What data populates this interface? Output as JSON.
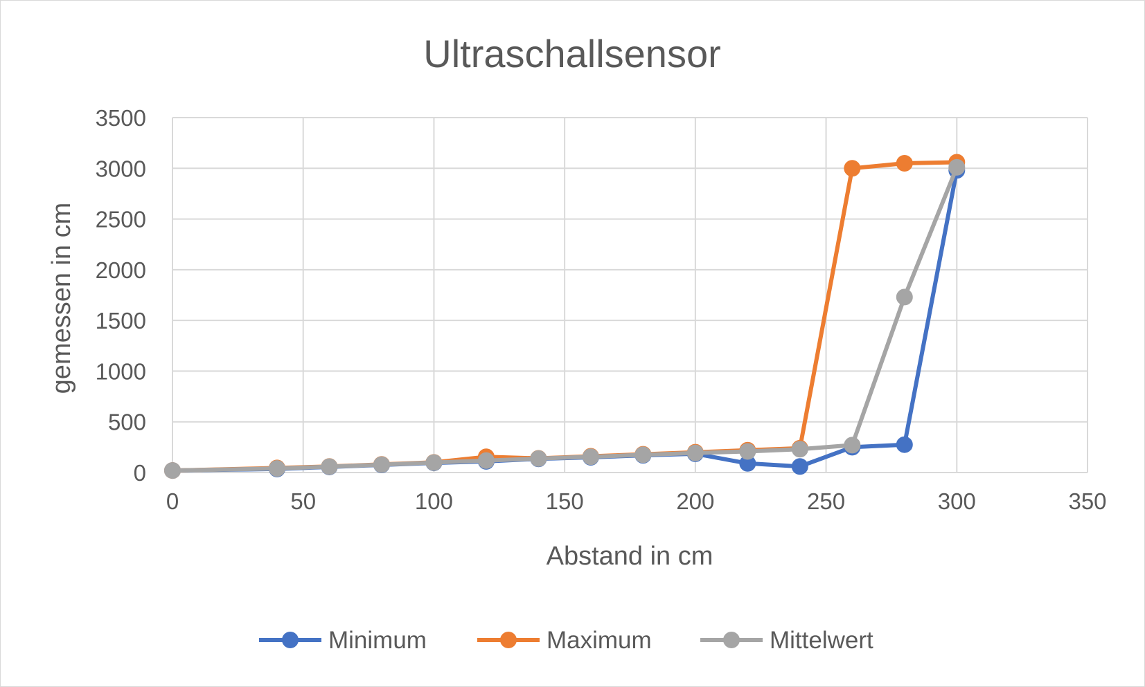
{
  "chart_data": {
    "type": "scatter",
    "title": "Ultraschallsensor",
    "xlabel": "Abstand in cm",
    "ylabel": "gemessen in cm",
    "xlim": [
      0,
      350
    ],
    "ylim": [
      0,
      3500
    ],
    "x_ticks": [
      "0",
      "50",
      "100",
      "150",
      "200",
      "250",
      "300",
      "350"
    ],
    "y_ticks": [
      "0",
      "500",
      "1000",
      "1500",
      "2000",
      "2500",
      "3000",
      "3500"
    ],
    "x_tick_values": [
      0,
      50,
      100,
      150,
      200,
      250,
      300,
      350
    ],
    "y_tick_values": [
      0,
      500,
      1000,
      1500,
      2000,
      2500,
      3000,
      3500
    ],
    "grid": true,
    "legend_position": "bottom",
    "x": [
      0,
      40,
      60,
      80,
      100,
      120,
      140,
      160,
      180,
      200,
      220,
      240,
      260,
      280,
      300
    ],
    "series": [
      {
        "name": "Minimum",
        "color": "#4472c4",
        "values": [
          20,
          35,
          55,
          75,
          95,
          110,
          135,
          150,
          170,
          185,
          90,
          60,
          250,
          275,
          2980
        ]
      },
      {
        "name": "Maximum",
        "color": "#ed7d31",
        "values": [
          20,
          45,
          60,
          80,
          100,
          155,
          140,
          160,
          180,
          200,
          220,
          240,
          3000,
          3050,
          3060
        ]
      },
      {
        "name": "Mittelwert",
        "color": "#a5a5a5",
        "values": [
          20,
          40,
          58,
          78,
          98,
          118,
          138,
          155,
          175,
          193,
          208,
          230,
          270,
          1730,
          3010
        ]
      }
    ]
  }
}
